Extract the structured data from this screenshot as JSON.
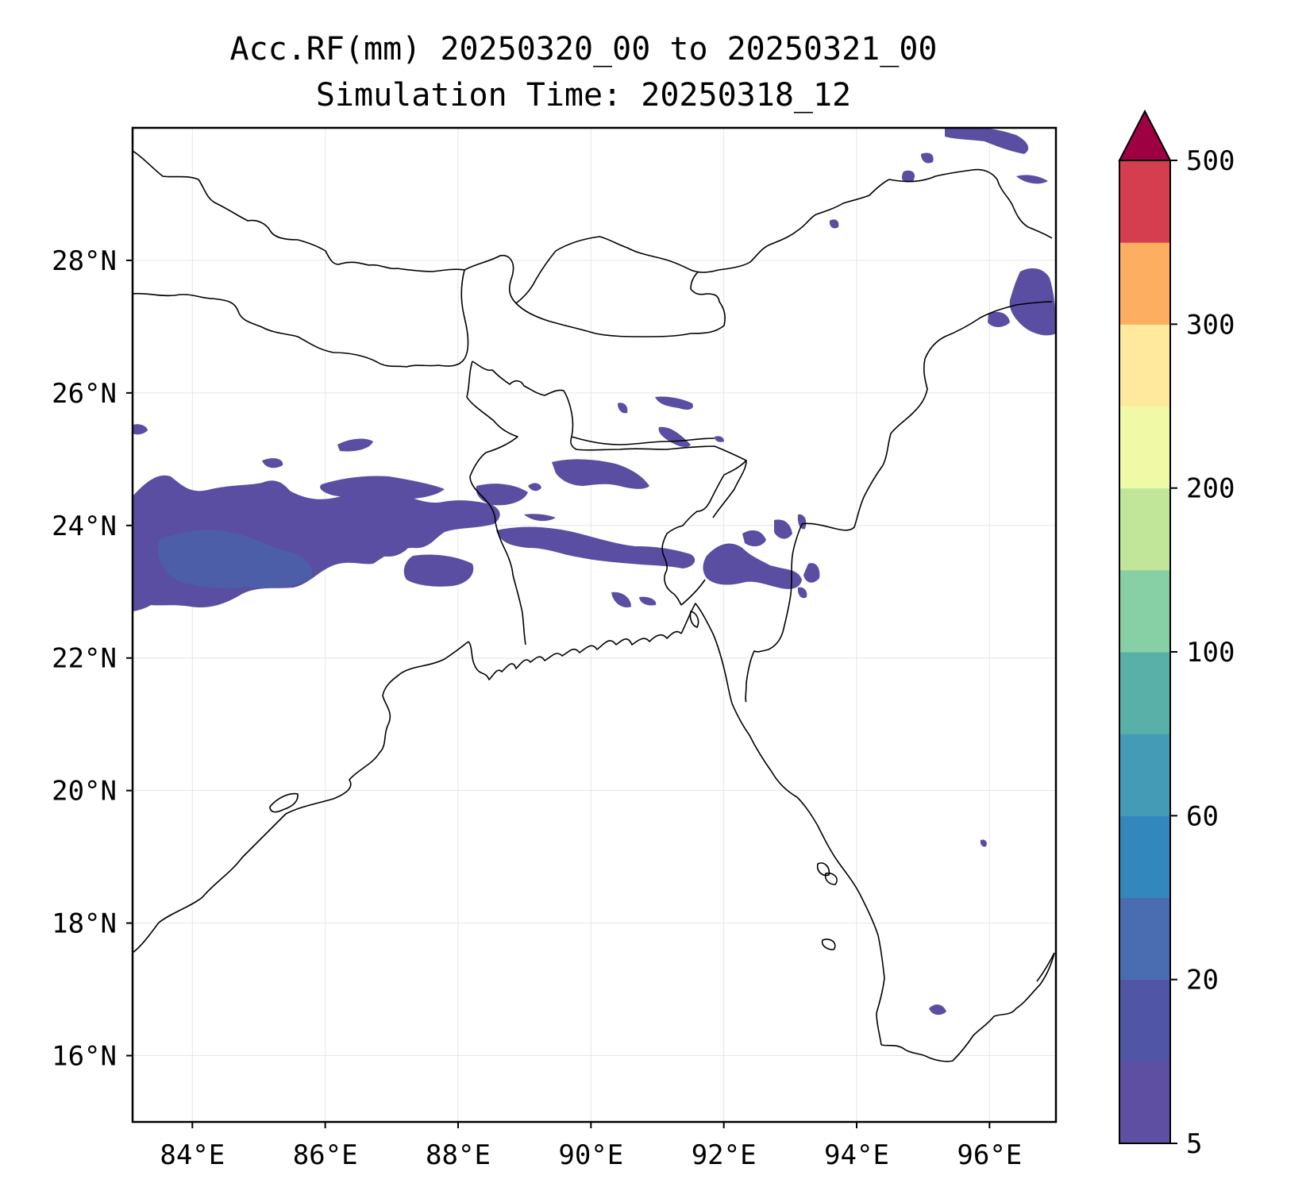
{
  "title": {
    "line1": "Acc.RF(mm) 20250320_00 to 20250321_00",
    "line2": "Simulation Time: 20250318_12"
  },
  "map": {
    "lon_range": [
      83.1,
      97.0
    ],
    "lat_range": [
      15.0,
      30.0
    ],
    "lon_ticks": [
      84,
      86,
      88,
      90,
      92,
      94,
      96
    ],
    "lat_ticks": [
      16,
      18,
      20,
      22,
      24,
      26,
      28
    ],
    "lon_tick_labels": [
      "84°E",
      "86°E",
      "88°E",
      "90°E",
      "92°E",
      "94°E",
      "96°E"
    ],
    "lat_tick_labels": [
      "16°N",
      "18°N",
      "20°N",
      "22°N",
      "24°N",
      "26°N",
      "28°N"
    ],
    "gridlines": true,
    "coastline_color": "#000000",
    "precip_color_low": "#5a4ea2"
  },
  "colorbar": {
    "levels": [
      5,
      10,
      20,
      40,
      60,
      80,
      100,
      150,
      200,
      250,
      300,
      400,
      500
    ],
    "tick_values": [
      5,
      20,
      60,
      100,
      200,
      300,
      500
    ],
    "tick_labels": [
      "5",
      "20",
      "60",
      "100",
      "200",
      "300",
      "500"
    ],
    "colors": [
      "#5e4fa2",
      "#5055a5",
      "#4a6cb0",
      "#3288bd",
      "#439bb5",
      "#58b0a8",
      "#87cfa4",
      "#c2e699",
      "#eff9a6",
      "#fee99d",
      "#fdae61",
      "#d53e4f"
    ],
    "extend_color": "#9e0142",
    "extend": "max"
  }
}
